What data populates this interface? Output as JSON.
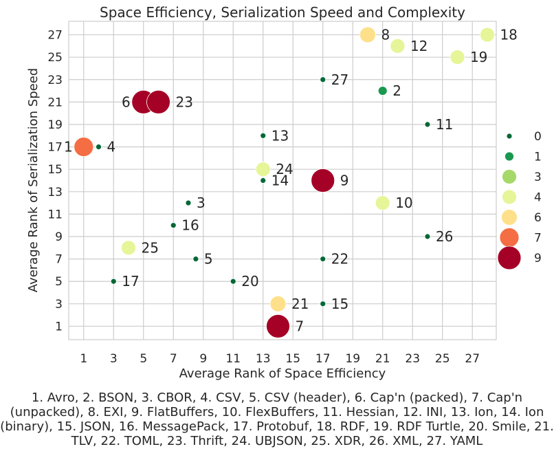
{
  "chart_data": {
    "type": "scatter",
    "title": "Space Efficiency, Serialization Speed and Complexity",
    "xlabel": "Average Rank of Space Efficiency",
    "ylabel": "Average Rank of Serialization Speed",
    "xlim": [
      0,
      28.6
    ],
    "ylim": [
      -0.2,
      28.2
    ],
    "xticks": [
      "1",
      "3",
      "5",
      "7",
      "9",
      "11",
      "13",
      "15",
      "17",
      "19",
      "21",
      "23",
      "25",
      "27"
    ],
    "yticks": [
      "1",
      "3",
      "5",
      "7",
      "9",
      "11",
      "13",
      "15",
      "17",
      "19",
      "21",
      "23",
      "25",
      "27"
    ],
    "grid": true,
    "size_encodes": "complexity",
    "legend": {
      "placement": "right",
      "entries": [
        {
          "label": "0",
          "value": 0,
          "color": "#006837"
        },
        {
          "label": "1",
          "value": 1,
          "color": "#1a9850"
        },
        {
          "label": "3",
          "value": 3,
          "color": "#a6d96a"
        },
        {
          "label": "4",
          "value": 4,
          "color": "#e6f598"
        },
        {
          "label": "6",
          "value": 6,
          "color": "#fee08b"
        },
        {
          "label": "7",
          "value": 7,
          "color": "#f46d43"
        },
        {
          "label": "9",
          "value": 9,
          "color": "#a50026"
        }
      ]
    },
    "points": [
      {
        "label": "1",
        "x": 1,
        "y": 17,
        "complexity": 7
      },
      {
        "label": "2",
        "x": 21,
        "y": 22,
        "complexity": 1
      },
      {
        "label": "3",
        "x": 8,
        "y": 12,
        "complexity": 0
      },
      {
        "label": "4",
        "x": 2,
        "y": 17,
        "complexity": 0
      },
      {
        "label": "5",
        "x": 8.5,
        "y": 7,
        "complexity": 0
      },
      {
        "label": "6",
        "x": 5,
        "y": 21,
        "complexity": 9
      },
      {
        "label": "7",
        "x": 14,
        "y": 1,
        "complexity": 9
      },
      {
        "label": "8",
        "x": 20,
        "y": 27,
        "complexity": 6
      },
      {
        "label": "9",
        "x": 17,
        "y": 14,
        "complexity": 9
      },
      {
        "label": "10",
        "x": 21,
        "y": 12,
        "complexity": 4
      },
      {
        "label": "11",
        "x": 24,
        "y": 19,
        "complexity": 0
      },
      {
        "label": "12",
        "x": 22,
        "y": 26,
        "complexity": 4
      },
      {
        "label": "13",
        "x": 13,
        "y": 18,
        "complexity": 0
      },
      {
        "label": "14",
        "x": 13,
        "y": 14,
        "complexity": 0
      },
      {
        "label": "15",
        "x": 17,
        "y": 3,
        "complexity": 0
      },
      {
        "label": "16",
        "x": 7,
        "y": 10,
        "complexity": 0
      },
      {
        "label": "17",
        "x": 3,
        "y": 5,
        "complexity": 0
      },
      {
        "label": "18",
        "x": 28,
        "y": 27,
        "complexity": 4
      },
      {
        "label": "19",
        "x": 26,
        "y": 25,
        "complexity": 4
      },
      {
        "label": "20",
        "x": 11,
        "y": 5,
        "complexity": 0
      },
      {
        "label": "21",
        "x": 14,
        "y": 3,
        "complexity": 6
      },
      {
        "label": "22",
        "x": 17,
        "y": 7,
        "complexity": 0
      },
      {
        "label": "23",
        "x": 6,
        "y": 21,
        "complexity": 9
      },
      {
        "label": "24",
        "x": 13,
        "y": 15,
        "complexity": 4
      },
      {
        "label": "25",
        "x": 4,
        "y": 8,
        "complexity": 4
      },
      {
        "label": "26",
        "x": 24,
        "y": 9,
        "complexity": 0
      },
      {
        "label": "27",
        "x": 17,
        "y": 23,
        "complexity": 0
      }
    ]
  },
  "caption": "1. Avro, 2. BSON, 3. CBOR, 4. CSV, 5. CSV (header), 6. Cap'n (packed), 7. Cap'n (unpacked), 8. EXI, 9. FlatBuffers, 10. FlexBuffers, 11. Hessian, 12. INI, 13. Ion, 14. Ion (binary), 15. JSON, 16. MessagePack, 17. Protobuf, 18. RDF, 19. RDF Turtle, 20. Smile, 21. TLV, 22. TOML, 23. Thrift, 24. UBJSON, 25. XDR, 26. XML, 27. YAML"
}
